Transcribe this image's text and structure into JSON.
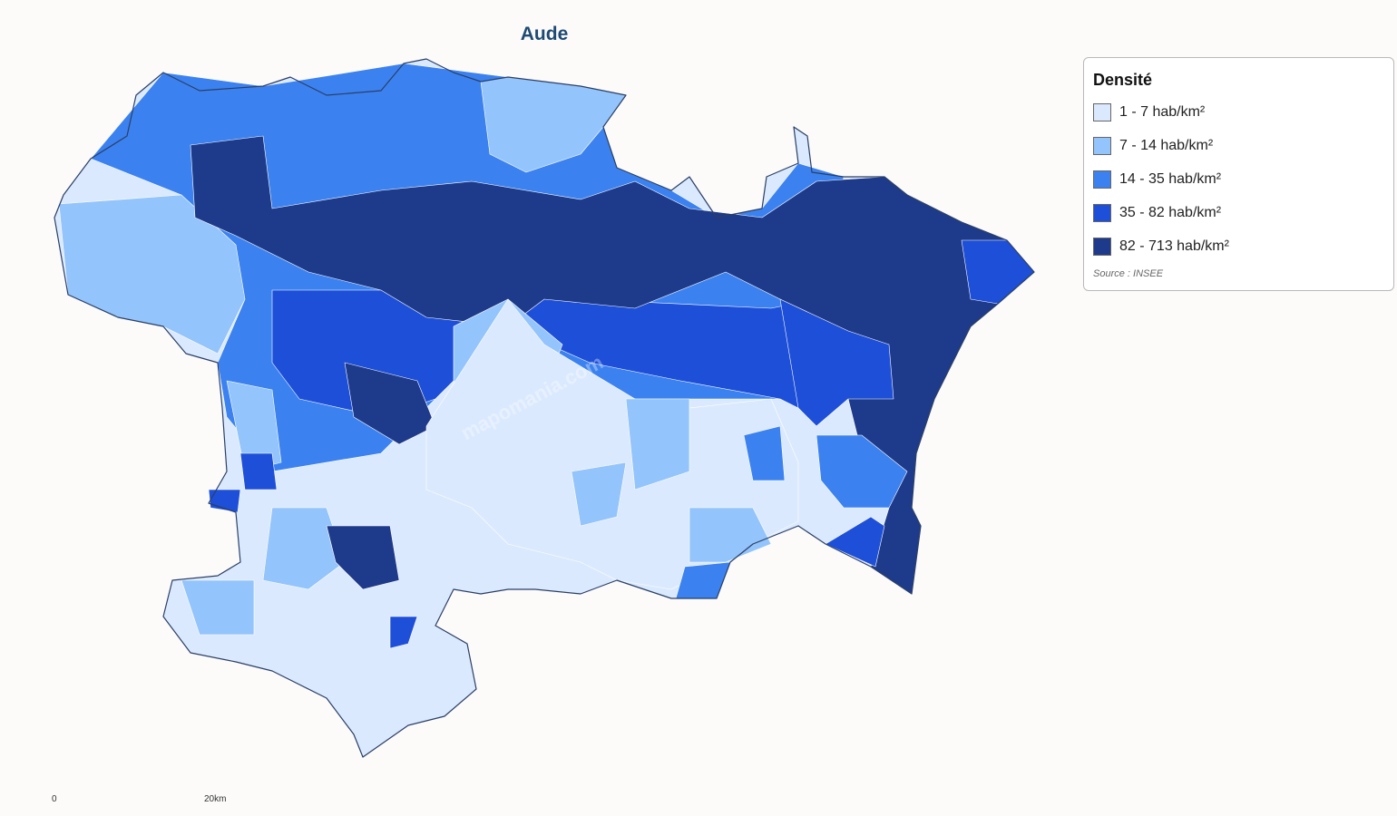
{
  "title": "Aude",
  "legend": {
    "title": "Densité",
    "items": [
      {
        "label": "1 - 7 hab/km²",
        "color": "#dbe9fe"
      },
      {
        "label": "7 - 14 hab/km²",
        "color": "#93c4fb"
      },
      {
        "label": "14 - 35 hab/km²",
        "color": "#3b82f0"
      },
      {
        "label": "35 - 82 hab/km²",
        "color": "#1d4fd8"
      },
      {
        "label": "82 - 713 hab/km²",
        "color": "#1e3a8a"
      }
    ],
    "source": "Source : INSEE"
  },
  "watermark": "mapomania.com",
  "scale": {
    "start": "0",
    "end": "20km"
  }
}
